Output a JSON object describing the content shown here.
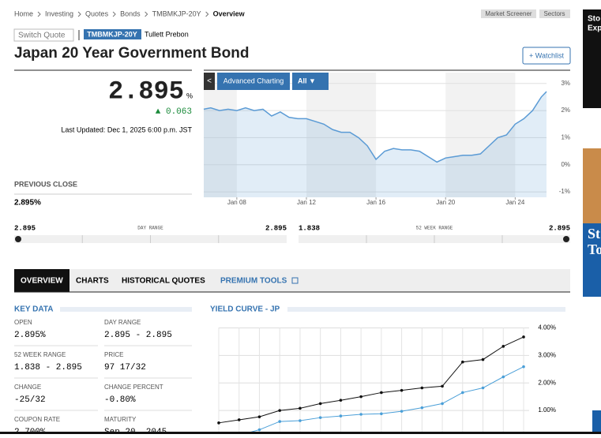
{
  "breadcrumb": [
    "Home",
    "Investing",
    "Quotes",
    "Bonds",
    "TMBMKJP-20Y",
    "Overview"
  ],
  "header_buttons": [
    "Market Screener",
    "Sectors"
  ],
  "switch_quote": "Switch Quote",
  "ticker": "TMBMKJP-20Y",
  "source": "Tullett Prebon",
  "title": "Japan 20 Year Government Bond",
  "watchlist": "+ Watchlist",
  "price": {
    "value": "2.895",
    "unit": "%",
    "change": "▲ 0.063",
    "updated": "Last Updated: Dec 1, 2025 6:00 p.m. JST"
  },
  "previous_close": {
    "label": "PREVIOUS CLOSE",
    "value": "2.895%"
  },
  "toolbar": {
    "back": "<",
    "advanced": "Advanced Charting",
    "range": "All ▼"
  },
  "ranges": [
    {
      "label": "DAY RANGE",
      "low": 2.895,
      "high": 2.895,
      "current": 2.895
    },
    {
      "label": "52 WEEK RANGE",
      "low": 1.838,
      "high": 2.895,
      "current": 2.895
    }
  ],
  "tabs": [
    "OVERVIEW",
    "CHARTS",
    "HISTORICAL QUOTES",
    "PREMIUM TOOLS"
  ],
  "key_data": {
    "title": "KEY DATA",
    "items": [
      [
        "OPEN",
        "2.895%"
      ],
      [
        "DAY RANGE",
        "2.895 - 2.895"
      ],
      [
        "52 WEEK RANGE",
        "1.838 - 2.895"
      ],
      [
        "PRICE",
        "97 17/32"
      ],
      [
        "CHANGE",
        "-25/32"
      ],
      [
        "CHANGE PERCENT",
        "-0.80%"
      ],
      [
        "COUPON RATE",
        "2.700%"
      ],
      [
        "MATURITY",
        "Sep 20, 2045"
      ]
    ]
  },
  "ad": [
    "Sto",
    "Exp",
    "St",
    "To"
  ],
  "chart_data": [
    {
      "type": "area",
      "color": "#5b9bd5",
      "x": [
        6.1,
        6.5,
        7,
        7.5,
        8,
        8.5,
        9,
        9.5,
        10,
        10.5,
        11,
        11.5,
        12,
        12.5,
        13,
        13.5,
        14,
        14.5,
        15,
        15.5,
        16,
        16.5,
        17,
        17.5,
        18,
        18.5,
        19,
        19.5,
        20,
        20.5,
        21,
        21.5,
        22,
        22.5,
        23,
        23.5,
        24,
        24.5,
        25,
        25.5,
        25.8
      ],
      "series": [
        {
          "name": "TMBMKJP-20Y",
          "color": "#5b9bd5",
          "values": [
            2.05,
            2.1,
            2.0,
            2.05,
            2.0,
            2.1,
            2.0,
            2.05,
            1.8,
            1.95,
            1.75,
            1.7,
            1.7,
            1.6,
            1.5,
            1.3,
            1.2,
            1.2,
            1.0,
            0.7,
            0.2,
            0.5,
            0.6,
            0.55,
            0.55,
            0.5,
            0.3,
            0.1,
            0.25,
            0.3,
            0.35,
            0.35,
            0.4,
            0.7,
            1.0,
            1.1,
            1.5,
            1.7,
            2.0,
            2.5,
            2.7
          ]
        }
      ],
      "xlim": [
        6.1,
        25.8
      ],
      "xticks": [
        {
          "value": 8,
          "label": "Jan 08"
        },
        {
          "value": 12,
          "label": "Jan 12"
        },
        {
          "value": 16,
          "label": "Jan 16"
        },
        {
          "value": 20,
          "label": "Jan 20"
        },
        {
          "value": 24,
          "label": "Jan 24"
        }
      ],
      "ylim": [
        -1.2,
        3.4
      ],
      "yticks": [
        {
          "value": 3,
          "label": "3%"
        },
        {
          "value": 2,
          "label": "2%"
        },
        {
          "value": 1,
          "label": "1%"
        },
        {
          "value": 0,
          "label": "0%"
        },
        {
          "value": -1,
          "label": "-1%"
        }
      ]
    },
    {
      "type": "line",
      "title": "YIELD CURVE - JP",
      "categories": [
        null,
        null,
        null,
        null,
        null,
        null,
        null,
        null,
        null,
        null,
        null,
        null,
        null,
        null,
        null,
        null
      ],
      "series": [
        {
          "name": null,
          "color": "#111111",
          "values": [
            0.55,
            0.66,
            0.77,
            1.0,
            1.08,
            1.25,
            1.37,
            1.5,
            1.65,
            1.73,
            1.82,
            1.88,
            2.76,
            2.85,
            3.33,
            3.67
          ]
        },
        {
          "name": null,
          "color": "#4a9fd8",
          "values": [
            0.0,
            0.1,
            0.3,
            0.6,
            0.63,
            0.74,
            0.8,
            0.86,
            0.88,
            0.97,
            1.1,
            1.25,
            1.65,
            1.82,
            2.22,
            2.59
          ]
        }
      ],
      "ylim": [
        0,
        4.3
      ],
      "yticks": [
        {
          "value": 4,
          "label": "4.00%"
        },
        {
          "value": 3,
          "label": "3.00%"
        },
        {
          "value": 2,
          "label": "2.00%"
        },
        {
          "value": 1,
          "label": "1.00%"
        }
      ]
    }
  ]
}
